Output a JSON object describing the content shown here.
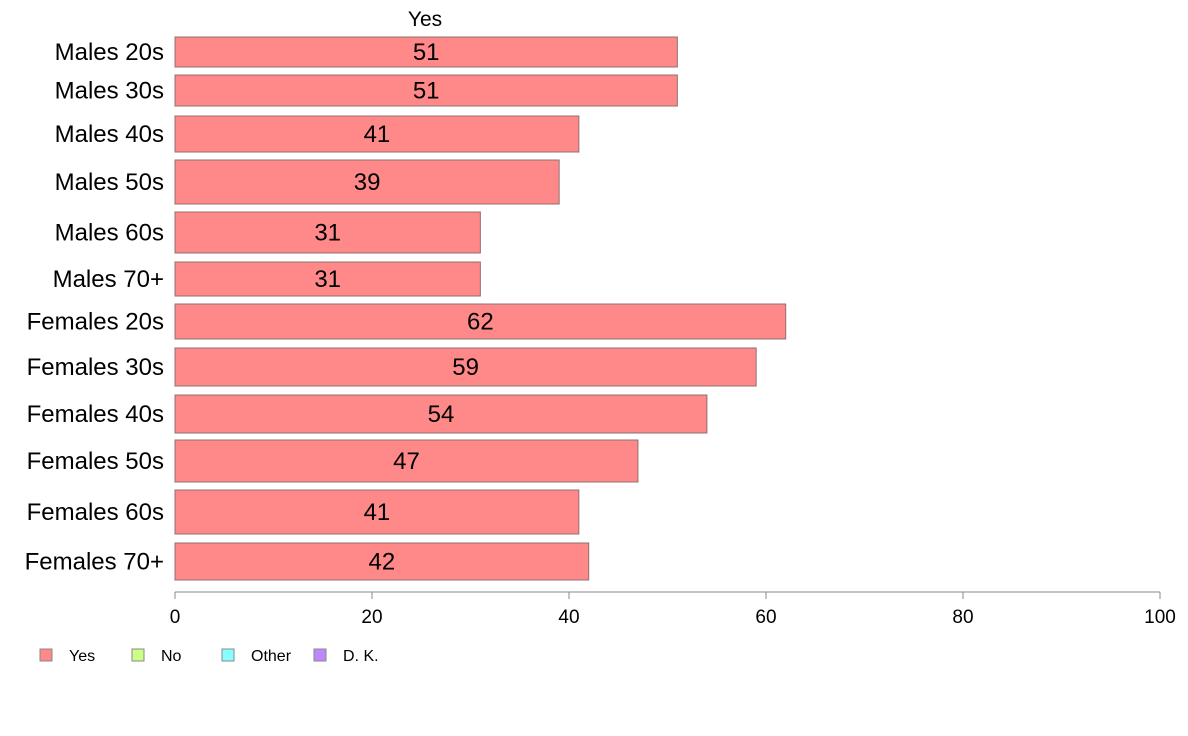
{
  "chart_data": {
    "type": "bar",
    "orientation": "horizontal",
    "title": "Yes",
    "categories": [
      "Males 20s",
      "Males 30s",
      "Males 40s",
      "Males 50s",
      "Males 60s",
      "Males 70+",
      "Females 20s",
      "Females 30s",
      "Females 40s",
      "Females 50s",
      "Females 60s",
      "Females 70+"
    ],
    "series": [
      {
        "name": "Yes",
        "values": [
          51,
          51,
          41,
          39,
          31,
          31,
          62,
          59,
          54,
          47,
          41,
          42
        ]
      }
    ],
    "value_labels": [
      "51",
      "51",
      "41",
      "39",
      "31",
      "31",
      "62",
      "59",
      "54",
      "47",
      "41",
      "42"
    ],
    "xlim": [
      0,
      100
    ],
    "xticks": [
      "0",
      "20",
      "40",
      "60",
      "80",
      "100"
    ],
    "xlabel": "",
    "ylabel": "",
    "grid": false,
    "legend": {
      "placement": "bottom-left",
      "items": [
        {
          "label": "Yes",
          "color": "#ff8888"
        },
        {
          "label": "No",
          "color": "#ccff88"
        },
        {
          "label": "Other",
          "color": "#88ffff"
        },
        {
          "label": "D. K.",
          "color": "#bb88ff"
        }
      ]
    },
    "bar_color": "#ff8888",
    "bar_border_color": "#8f6f6f"
  }
}
